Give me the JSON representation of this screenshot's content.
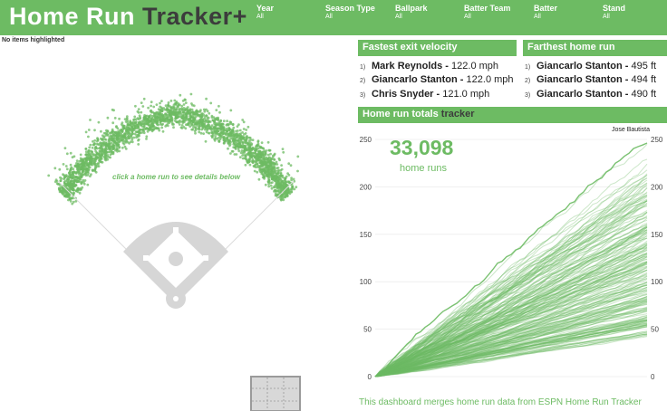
{
  "header": {
    "title_part1": "Home Run",
    "title_part2": "Tracker+",
    "filters": [
      {
        "label": "Year",
        "value": "All"
      },
      {
        "label": "Season Type",
        "value": "All"
      },
      {
        "label": "Ballpark",
        "value": "All"
      },
      {
        "label": "Batter Team",
        "value": "All"
      },
      {
        "label": "Batter",
        "value": "All"
      },
      {
        "label": "Stand",
        "value": "All"
      }
    ]
  },
  "selection_status": "No items highlighted",
  "field": {
    "hint": "click a home run to see details below"
  },
  "exit_velocity": {
    "title": "Fastest exit velocity",
    "rows": [
      {
        "rank": "1)",
        "name": "Mark Reynolds",
        "value": "122.0 mph"
      },
      {
        "rank": "2)",
        "name": "Giancarlo Stanton",
        "value": "122.0 mph"
      },
      {
        "rank": "3)",
        "name": "Chris Snyder",
        "value": "121.0 mph"
      }
    ]
  },
  "farthest": {
    "title": "Farthest home run",
    "rows": [
      {
        "rank": "1)",
        "name": "Giancarlo Stanton",
        "value": "495 ft"
      },
      {
        "rank": "2)",
        "name": "Giancarlo Stanton",
        "value": "494 ft"
      },
      {
        "rank": "3)",
        "name": "Giancarlo Stanton",
        "value": "490 ft"
      }
    ]
  },
  "totals": {
    "title_part1": "Home run totals",
    "title_part2": "tracker",
    "count": "33,098",
    "count_label": "home runs",
    "leader_label": "Jose Bautista"
  },
  "footer": "This dashboard merges home run data from ESPN Home Run Tracker",
  "chart_data": {
    "type": "line",
    "title": "",
    "xlabel": "",
    "ylabel": "",
    "ylim": [
      0,
      250
    ],
    "yticks": [
      0,
      50,
      100,
      150,
      200,
      250
    ],
    "grid": true,
    "series_description_count": 220,
    "leader_series": {
      "name": "Jose Bautista",
      "final_value": 250
    },
    "typical_final_values": [
      40,
      250
    ]
  },
  "colors": {
    "accent": "#6dbb63",
    "dark_text": "#3c3c3c",
    "infield": "#d6d6d6"
  }
}
